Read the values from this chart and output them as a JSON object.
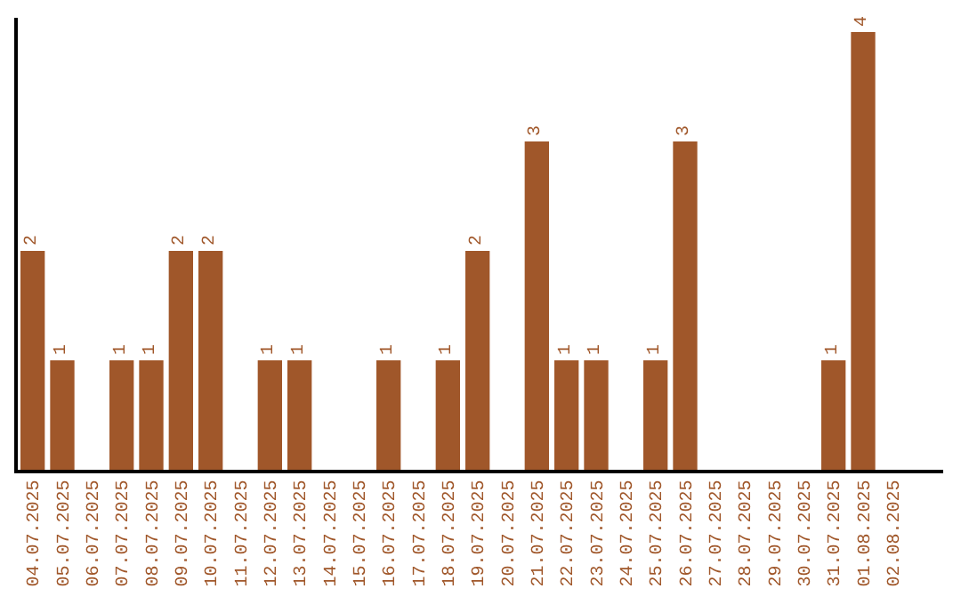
{
  "chart_data": {
    "type": "bar",
    "categories": [
      "04.07.2025",
      "05.07.2025",
      "06.07.2025",
      "07.07.2025",
      "08.07.2025",
      "09.07.2025",
      "10.07.2025",
      "11.07.2025",
      "12.07.2025",
      "13.07.2025",
      "14.07.2025",
      "15.07.2025",
      "16.07.2025",
      "17.07.2025",
      "18.07.2025",
      "19.07.2025",
      "20.07.2025",
      "21.07.2025",
      "22.07.2025",
      "23.07.2025",
      "24.07.2025",
      "25.07.2025",
      "26.07.2025",
      "27.07.2025",
      "28.07.2025",
      "29.07.2025",
      "30.07.2025",
      "31.07.2025",
      "01.08.2025",
      "02.08.2025"
    ],
    "values": [
      2,
      1,
      0,
      1,
      1,
      2,
      2,
      0,
      1,
      1,
      0,
      0,
      1,
      0,
      1,
      2,
      0,
      3,
      1,
      1,
      0,
      1,
      3,
      0,
      0,
      0,
      0,
      1,
      4,
      0
    ],
    "value_labels": [
      "2",
      "1",
      null,
      "1",
      "1",
      "2",
      "2",
      null,
      "1",
      "1",
      null,
      null,
      "1",
      null,
      "1",
      "2",
      null,
      "3",
      "1",
      "1",
      null,
      "1",
      "3",
      null,
      null,
      null,
      null,
      "1",
      "4",
      null
    ],
    "color": "#a0572a",
    "ylim": [
      0,
      4.13
    ],
    "tick_labels": "x"
  }
}
